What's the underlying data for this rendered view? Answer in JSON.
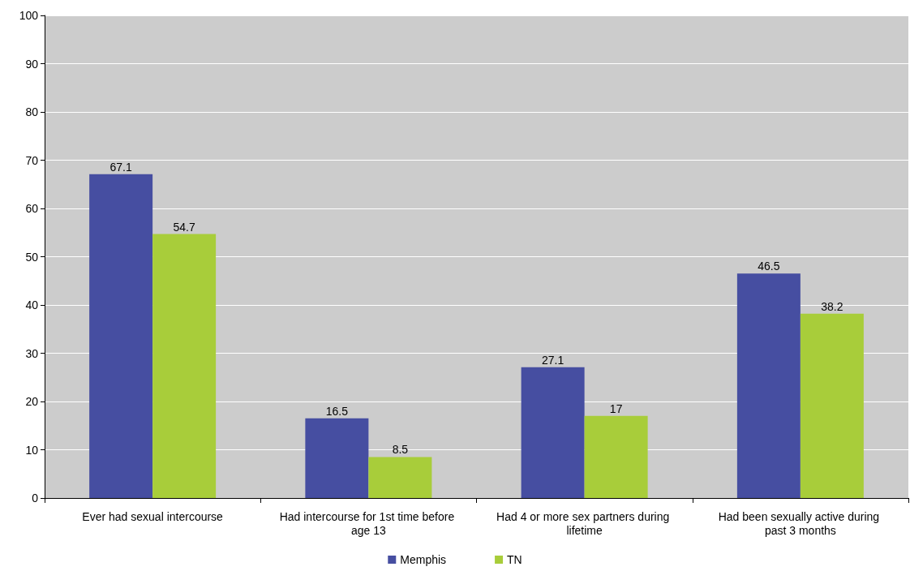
{
  "chart_data": {
    "type": "bar",
    "categories": [
      "Ever had sexual intercourse",
      "Had intercourse for 1st time before age 13",
      "Had 4 or more sex partners during lifetime",
      "Had been sexually active during past 3 months"
    ],
    "series": [
      {
        "name": "Memphis",
        "color": "#464ea1",
        "values": [
          67.1,
          16.5,
          27.1,
          46.5
        ]
      },
      {
        "name": "TN",
        "color": "#a8cd3a",
        "values": [
          54.7,
          8.5,
          17,
          38.2
        ]
      }
    ],
    "ylim": [
      0,
      100
    ],
    "yticks": [
      0,
      10,
      20,
      30,
      40,
      50,
      60,
      70,
      80,
      90,
      100
    ],
    "grid": "y",
    "legend": "bottom",
    "data_labels": true
  }
}
